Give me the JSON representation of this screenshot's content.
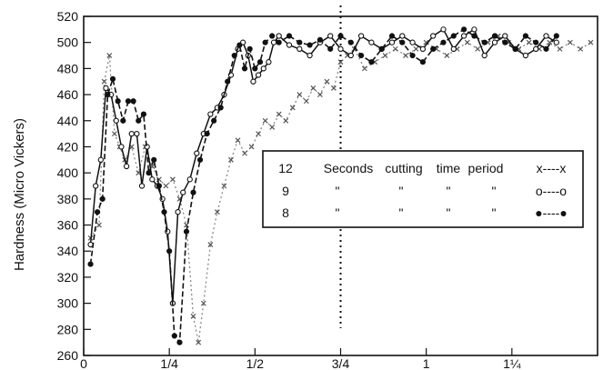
{
  "chart_data": {
    "type": "line",
    "title": "",
    "xlabel": "",
    "ylabel": "Hardness (Micro Vickers)",
    "xlim": [
      0,
      1.5
    ],
    "ylim": [
      260,
      520
    ],
    "x_ticks": [
      0,
      0.25,
      0.5,
      0.75,
      1.0,
      1.25
    ],
    "x_tick_labels": [
      "0",
      "1/4",
      "1/2",
      "3/4",
      "1",
      "1¼"
    ],
    "y_ticks": [
      260,
      280,
      300,
      320,
      340,
      360,
      380,
      400,
      420,
      440,
      460,
      480,
      500,
      520
    ],
    "y_tick_labels": [
      "260",
      "280",
      "300",
      "320",
      "340",
      "360",
      "380",
      "400",
      "420",
      "440",
      "460",
      "480",
      "500",
      "520"
    ],
    "vertical_reference_line": 0.75,
    "grid": false,
    "legend": {
      "placement": "center-right",
      "header": [
        "Seconds",
        "cutting",
        "time",
        "period"
      ],
      "ditto": "\"",
      "entries": [
        {
          "label": "12",
          "sample": "x----x"
        },
        {
          "label": "9",
          "sample": "o----o"
        },
        {
          "label": "8",
          "sample": "●----●"
        }
      ]
    },
    "series": [
      {
        "name": "12",
        "marker": "x",
        "dash": "dotted",
        "points": [
          [
            0.02,
            350
          ],
          [
            0.045,
            360
          ],
          [
            0.06,
            470
          ],
          [
            0.075,
            490
          ],
          [
            0.09,
            430
          ],
          [
            0.105,
            420
          ],
          [
            0.12,
            410
          ],
          [
            0.14,
            420
          ],
          [
            0.16,
            400
          ],
          [
            0.18,
            420
          ],
          [
            0.2,
            405
          ],
          [
            0.22,
            395
          ],
          [
            0.24,
            390
          ],
          [
            0.26,
            395
          ],
          [
            0.28,
            380
          ],
          [
            0.3,
            360
          ],
          [
            0.32,
            290
          ],
          [
            0.335,
            270
          ],
          [
            0.35,
            300
          ],
          [
            0.37,
            345
          ],
          [
            0.39,
            370
          ],
          [
            0.41,
            390
          ],
          [
            0.43,
            410
          ],
          [
            0.45,
            425
          ],
          [
            0.47,
            415
          ],
          [
            0.49,
            420
          ],
          [
            0.51,
            430
          ],
          [
            0.53,
            440
          ],
          [
            0.55,
            435
          ],
          [
            0.57,
            445
          ],
          [
            0.59,
            440
          ],
          [
            0.61,
            450
          ],
          [
            0.63,
            460
          ],
          [
            0.65,
            455
          ],
          [
            0.67,
            465
          ],
          [
            0.69,
            460
          ],
          [
            0.71,
            470
          ],
          [
            0.73,
            465
          ],
          [
            0.75,
            485
          ],
          [
            0.77,
            490
          ],
          [
            0.79,
            495
          ],
          [
            0.82,
            480
          ],
          [
            0.85,
            485
          ],
          [
            0.88,
            490
          ],
          [
            0.91,
            495
          ],
          [
            0.94,
            490
          ],
          [
            0.97,
            495
          ],
          [
            1.0,
            500
          ],
          [
            1.03,
            495
          ],
          [
            1.06,
            490
          ],
          [
            1.09,
            495
          ],
          [
            1.12,
            500
          ],
          [
            1.15,
            495
          ],
          [
            1.18,
            500
          ],
          [
            1.21,
            505
          ],
          [
            1.24,
            500
          ],
          [
            1.27,
            495
          ],
          [
            1.3,
            500
          ],
          [
            1.33,
            495
          ],
          [
            1.36,
            500
          ],
          [
            1.39,
            495
          ],
          [
            1.42,
            500
          ],
          [
            1.45,
            495
          ],
          [
            1.48,
            500
          ]
        ]
      },
      {
        "name": "9",
        "marker": "o",
        "dash": "solid",
        "points": [
          [
            0.02,
            345
          ],
          [
            0.035,
            390
          ],
          [
            0.05,
            410
          ],
          [
            0.065,
            465
          ],
          [
            0.08,
            460
          ],
          [
            0.095,
            440
          ],
          [
            0.11,
            420
          ],
          [
            0.125,
            405
          ],
          [
            0.14,
            430
          ],
          [
            0.155,
            430
          ],
          [
            0.17,
            390
          ],
          [
            0.185,
            420
          ],
          [
            0.2,
            395
          ],
          [
            0.215,
            390
          ],
          [
            0.23,
            380
          ],
          [
            0.245,
            355
          ],
          [
            0.26,
            300
          ],
          [
            0.275,
            370
          ],
          [
            0.29,
            385
          ],
          [
            0.31,
            395
          ],
          [
            0.33,
            415
          ],
          [
            0.35,
            430
          ],
          [
            0.37,
            445
          ],
          [
            0.39,
            450
          ],
          [
            0.41,
            460
          ],
          [
            0.43,
            475
          ],
          [
            0.45,
            495
          ],
          [
            0.465,
            500
          ],
          [
            0.48,
            490
          ],
          [
            0.495,
            470
          ],
          [
            0.51,
            475
          ],
          [
            0.525,
            480
          ],
          [
            0.54,
            485
          ],
          [
            0.555,
            500
          ],
          [
            0.57,
            505
          ],
          [
            0.6,
            498
          ],
          [
            0.63,
            495
          ],
          [
            0.66,
            490
          ],
          [
            0.69,
            500
          ],
          [
            0.72,
            505
          ],
          [
            0.75,
            495
          ],
          [
            0.78,
            490
          ],
          [
            0.81,
            505
          ],
          [
            0.84,
            500
          ],
          [
            0.87,
            495
          ],
          [
            0.9,
            500
          ],
          [
            0.93,
            505
          ],
          [
            0.96,
            500
          ],
          [
            0.99,
            495
          ],
          [
            1.02,
            505
          ],
          [
            1.05,
            510
          ],
          [
            1.08,
            495
          ],
          [
            1.11,
            505
          ],
          [
            1.14,
            510
          ],
          [
            1.17,
            490
          ],
          [
            1.2,
            500
          ],
          [
            1.23,
            505
          ],
          [
            1.26,
            495
          ],
          [
            1.29,
            490
          ],
          [
            1.32,
            495
          ],
          [
            1.35,
            505
          ],
          [
            1.38,
            500
          ]
        ]
      },
      {
        "name": "8",
        "marker": "filled-circle",
        "dash": "dashed",
        "points": [
          [
            0.02,
            330
          ],
          [
            0.04,
            370
          ],
          [
            0.055,
            380
          ],
          [
            0.07,
            460
          ],
          [
            0.085,
            472
          ],
          [
            0.1,
            455
          ],
          [
            0.115,
            440
          ],
          [
            0.13,
            455
          ],
          [
            0.145,
            455
          ],
          [
            0.16,
            440
          ],
          [
            0.175,
            445
          ],
          [
            0.19,
            400
          ],
          [
            0.205,
            410
          ],
          [
            0.22,
            390
          ],
          [
            0.235,
            370
          ],
          [
            0.25,
            340
          ],
          [
            0.265,
            275
          ],
          [
            0.28,
            270
          ],
          [
            0.3,
            355
          ],
          [
            0.32,
            385
          ],
          [
            0.34,
            410
          ],
          [
            0.36,
            430
          ],
          [
            0.38,
            440
          ],
          [
            0.4,
            450
          ],
          [
            0.42,
            470
          ],
          [
            0.44,
            490
          ],
          [
            0.455,
            498
          ],
          [
            0.47,
            480
          ],
          [
            0.485,
            495
          ],
          [
            0.5,
            480
          ],
          [
            0.515,
            485
          ],
          [
            0.53,
            500
          ],
          [
            0.55,
            505
          ],
          [
            0.57,
            500
          ],
          [
            0.6,
            505
          ],
          [
            0.63,
            500
          ],
          [
            0.66,
            498
          ],
          [
            0.69,
            502
          ],
          [
            0.72,
            495
          ],
          [
            0.75,
            505
          ],
          [
            0.78,
            500
          ],
          [
            0.81,
            490
          ],
          [
            0.84,
            485
          ],
          [
            0.87,
            495
          ],
          [
            0.9,
            505
          ],
          [
            0.93,
            500
          ],
          [
            0.96,
            490
          ],
          [
            0.99,
            485
          ],
          [
            1.02,
            495
          ],
          [
            1.05,
            500
          ],
          [
            1.08,
            505
          ],
          [
            1.11,
            510
          ],
          [
            1.14,
            505
          ],
          [
            1.17,
            500
          ],
          [
            1.2,
            505
          ],
          [
            1.23,
            500
          ],
          [
            1.26,
            495
          ],
          [
            1.29,
            505
          ],
          [
            1.32,
            500
          ],
          [
            1.35,
            495
          ],
          [
            1.38,
            505
          ]
        ]
      }
    ]
  }
}
